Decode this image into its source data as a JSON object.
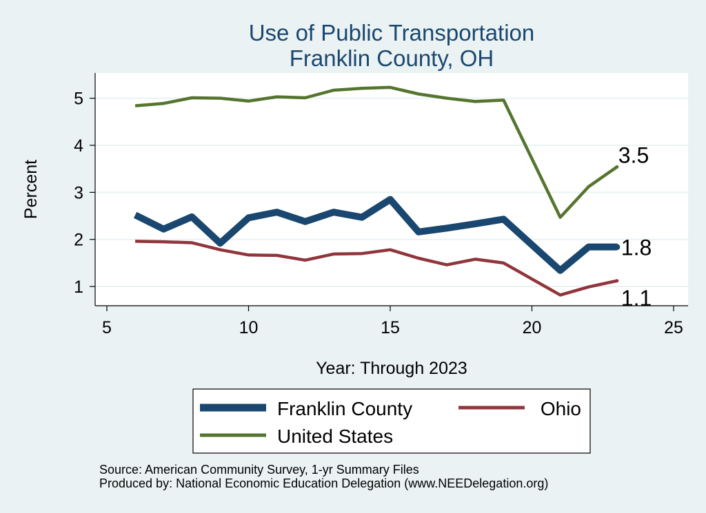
{
  "chart_data": {
    "type": "line",
    "title_lines": [
      "Use of Public Transportation",
      "Franklin County, OH"
    ],
    "xlabel": "Year: Through 2023",
    "ylabel": "Percent",
    "xlim": [
      5,
      25
    ],
    "ylim": [
      0.6,
      5.45
    ],
    "xticks": [
      5,
      10,
      15,
      20,
      25
    ],
    "yticks": [
      1,
      2,
      3,
      4,
      5
    ],
    "grid": "horizontal",
    "legend_position": "bottom",
    "series": [
      {
        "name": "Franklin County",
        "color": "#1a476f",
        "x": [
          6,
          7,
          8,
          9,
          10,
          11,
          12,
          13,
          14,
          15,
          16,
          17,
          18,
          19,
          21,
          22,
          23
        ],
        "y": [
          2.52,
          2.22,
          2.48,
          1.92,
          2.46,
          2.58,
          2.38,
          2.58,
          2.47,
          2.85,
          2.16,
          2.24,
          2.33,
          2.43,
          1.34,
          1.84,
          1.84
        ],
        "end_label": "1.8"
      },
      {
        "name": "Ohio",
        "color": "#90353b",
        "x": [
          6,
          7,
          8,
          9,
          10,
          11,
          12,
          13,
          14,
          15,
          16,
          17,
          18,
          19,
          21,
          22,
          23
        ],
        "y": [
          1.96,
          1.95,
          1.93,
          1.78,
          1.67,
          1.66,
          1.56,
          1.69,
          1.7,
          1.78,
          1.6,
          1.46,
          1.58,
          1.5,
          0.82,
          0.99,
          1.12
        ],
        "end_label": "1.1"
      },
      {
        "name": "United States",
        "color": "#55752f",
        "x": [
          6,
          7,
          8,
          9,
          10,
          11,
          12,
          13,
          14,
          15,
          16,
          17,
          18,
          19,
          21,
          22,
          23
        ],
        "y": [
          4.84,
          4.89,
          5.01,
          5.0,
          4.94,
          5.03,
          5.01,
          5.17,
          5.21,
          5.23,
          5.09,
          5.0,
          4.93,
          4.96,
          2.47,
          3.12,
          3.54
        ],
        "end_label": "3.5"
      }
    ],
    "notes": [
      "Source: American Community Survey, 1-yr Summary Files",
      "Produced by: National Economic Education Delegation (www.NEEDelegation.org)"
    ]
  }
}
